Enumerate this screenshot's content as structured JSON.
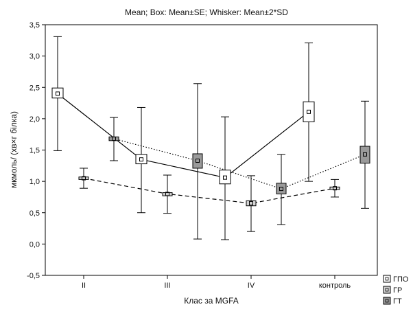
{
  "chart_data": {
    "type": "box",
    "title": "Mean; Box: Mean±SE; Whisker: Mean±2*SD",
    "xlabel": "Клас за MGFA",
    "ylabel": "мкмоль/ (хв×г білка)",
    "categories": [
      "II",
      "III",
      "IV",
      "контроль"
    ],
    "ylim": [
      -0.5,
      3.5
    ],
    "yticks": [
      "-0,5",
      "0,0",
      "0,5",
      "1,0",
      "1,5",
      "2,0",
      "2,5",
      "3,0",
      "3,5"
    ],
    "grid": false,
    "legend_position": "bottom-right",
    "series": [
      {
        "name": "ГПО",
        "fill": "#ffffff",
        "line_style": "solid",
        "mean": [
          2.4,
          1.35,
          1.06,
          2.11
        ],
        "se_low": [
          2.33,
          1.28,
          0.96,
          1.95
        ],
        "se_high": [
          2.49,
          1.43,
          1.18,
          2.27
        ],
        "whisk_low": [
          1.49,
          0.5,
          0.07,
          1.0
        ],
        "whisk_high": [
          3.31,
          2.18,
          2.03,
          3.21
        ]
      },
      {
        "name": "ГР",
        "fill": "#d3d3d3",
        "line_style": "dashed",
        "mean": [
          1.05,
          0.8,
          0.65,
          0.89
        ],
        "se_low": [
          1.03,
          0.77,
          0.61,
          0.87
        ],
        "se_high": [
          1.07,
          0.82,
          0.69,
          0.91
        ],
        "whisk_low": [
          0.89,
          0.49,
          0.2,
          0.75
        ],
        "whisk_high": [
          1.21,
          1.1,
          1.09,
          1.03
        ]
      },
      {
        "name": "ГТ",
        "fill": "#9a9a9a",
        "line_style": "dotted",
        "mean": [
          1.68,
          1.33,
          0.88,
          1.43
        ],
        "se_low": [
          1.65,
          1.21,
          0.8,
          1.29
        ],
        "se_high": [
          1.71,
          1.44,
          0.97,
          1.56
        ],
        "whisk_low": [
          1.33,
          0.08,
          0.31,
          0.57
        ],
        "whisk_high": [
          2.02,
          2.56,
          1.43,
          2.28
        ]
      }
    ]
  }
}
